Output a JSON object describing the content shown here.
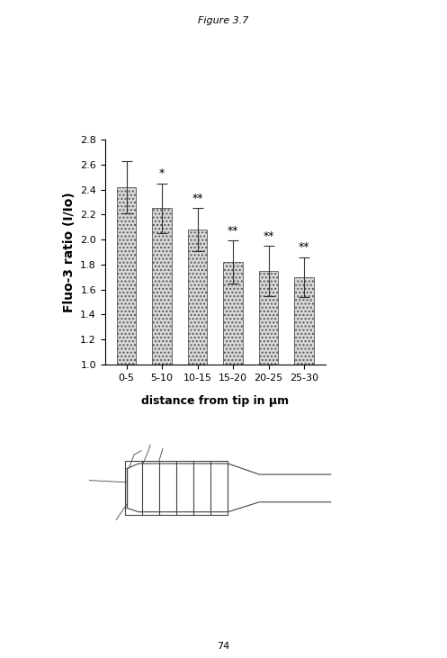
{
  "header": "Figure 3.7",
  "chart_data": {
    "type": "bar",
    "x_label": "distance from tip in µm",
    "y_label": "Fluo-3 ratio (I/Io)",
    "categories": [
      "0-5",
      "5-10",
      "10-15",
      "15-20",
      "20-25",
      "25-30"
    ],
    "values": [
      2.42,
      2.25,
      2.08,
      1.82,
      1.75,
      1.7
    ],
    "errors": [
      0.21,
      0.2,
      0.17,
      0.17,
      0.2,
      0.16
    ],
    "significance": [
      null,
      "*",
      "**",
      "**",
      "**",
      "**"
    ],
    "color": "#d9d9d9",
    "ylim": [
      1.0,
      2.8
    ],
    "yticks": [
      1.0,
      1.2,
      1.4,
      1.6,
      1.8,
      2.0,
      2.2,
      2.4,
      2.6,
      2.8
    ],
    "grid": false
  },
  "page_number": "74"
}
